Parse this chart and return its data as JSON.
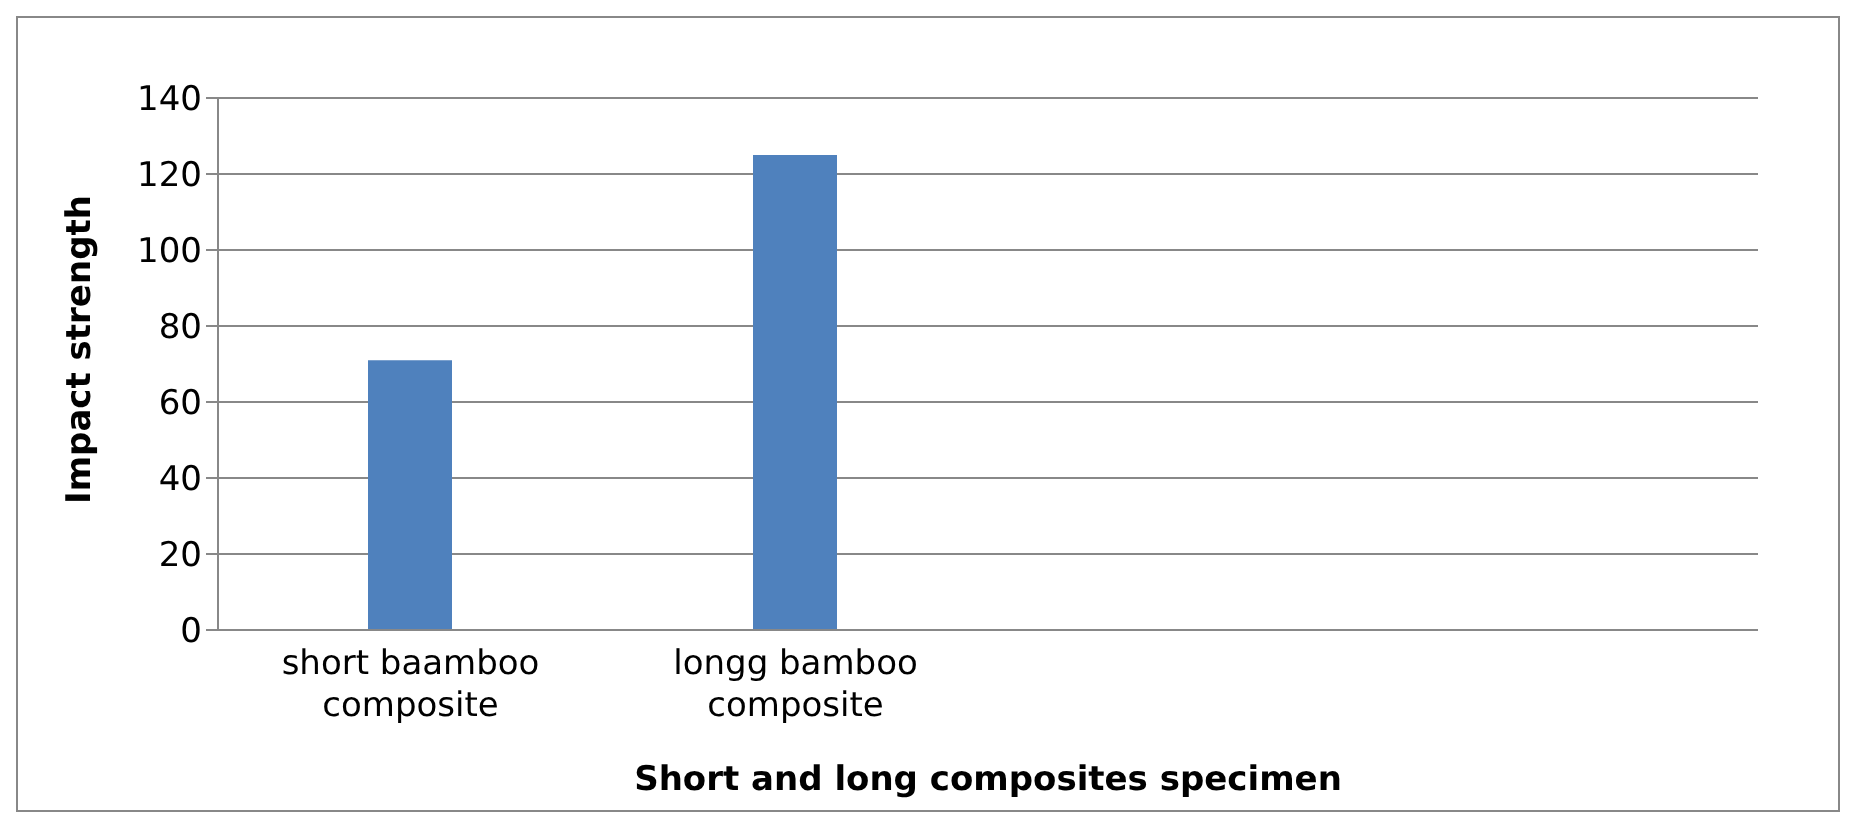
{
  "chart_data": {
    "type": "bar",
    "xlabel": "Short and long composites specimen",
    "ylabel": "Impact strength",
    "categories": [
      "short baamboo composite",
      "longg bamboo composite",
      null,
      null
    ],
    "values": [
      71,
      125,
      null,
      null
    ],
    "color": "#4f81bd",
    "ylim": [
      0,
      140
    ],
    "yticks": [
      0,
      20,
      40,
      60,
      80,
      100,
      120,
      140
    ],
    "grid": "y",
    "legend": false
  }
}
